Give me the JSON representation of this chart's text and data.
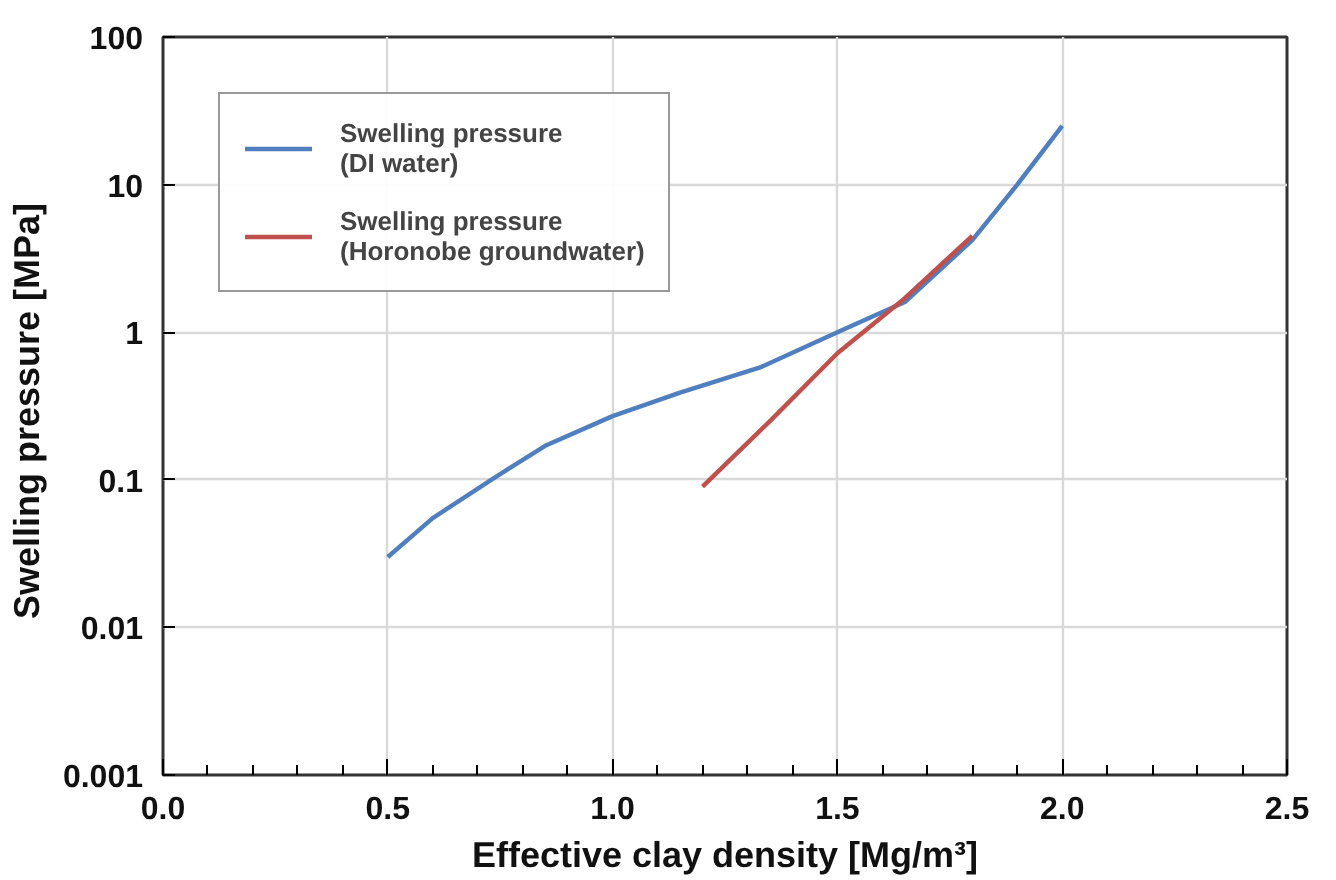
{
  "chart_data": {
    "type": "line",
    "xlabel": "Effective clay density [Mg/m³]",
    "ylabel": "Swelling pressure  [MPa]",
    "series": [
      {
        "name": "Swelling pressure\n(DI water)",
        "color": "#4f7fbf",
        "x": [
          0.5,
          0.6,
          0.73,
          0.85,
          1.0,
          1.15,
          1.33,
          1.5,
          1.65,
          1.8,
          1.9,
          2.0
        ],
        "values": [
          0.03,
          0.055,
          0.1,
          0.17,
          0.27,
          0.39,
          0.58,
          1.0,
          1.6,
          4.2,
          10,
          25
        ]
      },
      {
        "name": "Swelling pressure\n(Horonobe groundwater)",
        "color": "#c0504d",
        "x": [
          1.2,
          1.35,
          1.5,
          1.65,
          1.8
        ],
        "values": [
          0.09,
          0.25,
          0.72,
          1.7,
          4.5
        ]
      }
    ],
    "xlim": [
      0,
      2.5
    ],
    "xticks": [
      {
        "value": 0,
        "label": "0.0"
      },
      0.5,
      {
        "value": 1,
        "label": "1.0"
      },
      1.5,
      {
        "value": 2,
        "label": "2.0"
      },
      2.5
    ],
    "ylim": [
      0.001,
      100
    ],
    "yticks": [
      0.001,
      0.01,
      0.1,
      1,
      10,
      100
    ],
    "log": "y",
    "grid": true,
    "legend": "top left",
    "marker": "none",
    "line_style": "solid"
  }
}
